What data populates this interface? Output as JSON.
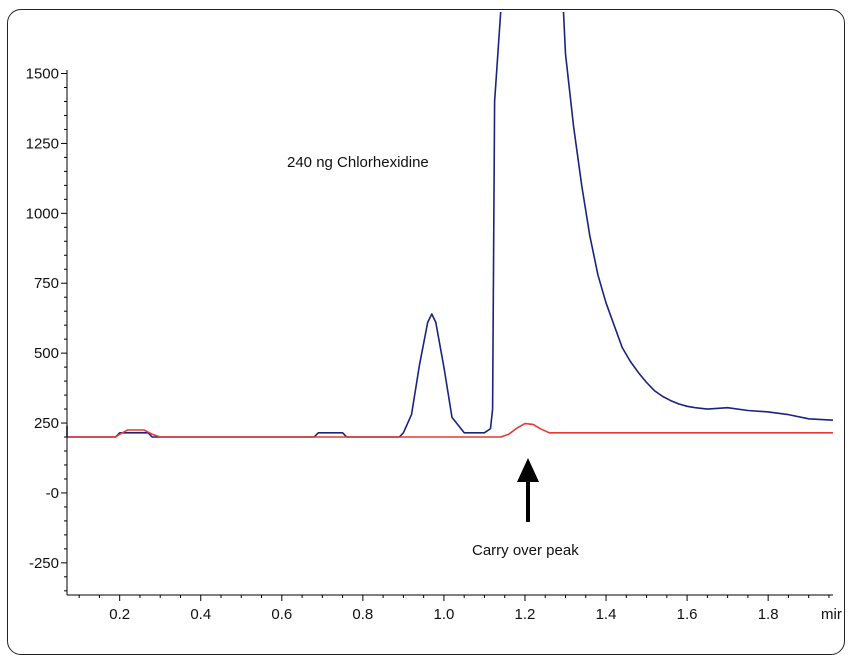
{
  "chart_data": {
    "type": "line",
    "x_unit": "mir",
    "xlim": [
      0.07,
      1.96
    ],
    "ylim": [
      -365,
      1720
    ],
    "x_ticks": [
      0.2,
      0.4,
      0.6,
      0.8,
      1.0,
      1.2,
      1.4,
      1.6,
      1.8
    ],
    "x_tick_labels": [
      "0.2",
      "0.4",
      "0.6",
      "0.8",
      "1.0",
      "1.2",
      "1.4",
      "1.6",
      "1.8"
    ],
    "y_ticks": [
      -250,
      0,
      250,
      500,
      750,
      1000,
      1250,
      1500
    ],
    "y_tick_labels": [
      "-250",
      "-0",
      "250",
      "500",
      "750",
      "1000",
      "1250",
      "1500"
    ],
    "grid": false,
    "annotations": {
      "sample_label": "240 ng Chlorhexidine",
      "carryover_label": "Carry over peak"
    },
    "series": [
      {
        "color": "#1a237e",
        "points": [
          [
            0.06,
            240
          ],
          [
            0.07,
            200
          ],
          [
            0.19,
            200
          ],
          [
            0.2,
            215
          ],
          [
            0.27,
            215
          ],
          [
            0.28,
            200
          ],
          [
            0.68,
            200
          ],
          [
            0.69,
            215
          ],
          [
            0.75,
            215
          ],
          [
            0.76,
            200
          ],
          [
            0.89,
            200
          ],
          [
            0.9,
            215
          ],
          [
            0.92,
            280
          ],
          [
            0.94,
            460
          ],
          [
            0.96,
            610
          ],
          [
            0.97,
            640
          ],
          [
            0.98,
            610
          ],
          [
            1.0,
            450
          ],
          [
            1.02,
            270
          ],
          [
            1.05,
            215
          ],
          [
            1.1,
            215
          ],
          [
            1.115,
            230
          ],
          [
            1.12,
            300
          ],
          [
            1.125,
            1400
          ],
          [
            1.14,
            1720
          ]
        ]
      },
      {
        "color": "#1a237e",
        "points": [
          [
            1.295,
            1720
          ],
          [
            1.3,
            1570
          ],
          [
            1.32,
            1310
          ],
          [
            1.34,
            1100
          ],
          [
            1.36,
            920
          ],
          [
            1.38,
            780
          ],
          [
            1.4,
            680
          ],
          [
            1.42,
            600
          ],
          [
            1.44,
            520
          ],
          [
            1.46,
            470
          ],
          [
            1.48,
            430
          ],
          [
            1.5,
            395
          ],
          [
            1.52,
            365
          ],
          [
            1.54,
            345
          ],
          [
            1.56,
            330
          ],
          [
            1.58,
            318
          ],
          [
            1.6,
            310
          ],
          [
            1.62,
            305
          ],
          [
            1.65,
            300
          ],
          [
            1.7,
            305
          ],
          [
            1.75,
            295
          ],
          [
            1.8,
            290
          ],
          [
            1.85,
            280
          ],
          [
            1.9,
            265
          ],
          [
            1.96,
            260
          ]
        ]
      },
      {
        "color": "#e53935",
        "points": [
          [
            0.07,
            200
          ],
          [
            0.19,
            200
          ],
          [
            0.2,
            210
          ],
          [
            0.22,
            225
          ],
          [
            0.26,
            225
          ],
          [
            0.28,
            210
          ],
          [
            0.3,
            200
          ],
          [
            1.14,
            200
          ],
          [
            1.16,
            210
          ],
          [
            1.18,
            232
          ],
          [
            1.2,
            248
          ],
          [
            1.22,
            245
          ],
          [
            1.24,
            228
          ],
          [
            1.26,
            215
          ],
          [
            1.96,
            215
          ]
        ]
      }
    ]
  }
}
